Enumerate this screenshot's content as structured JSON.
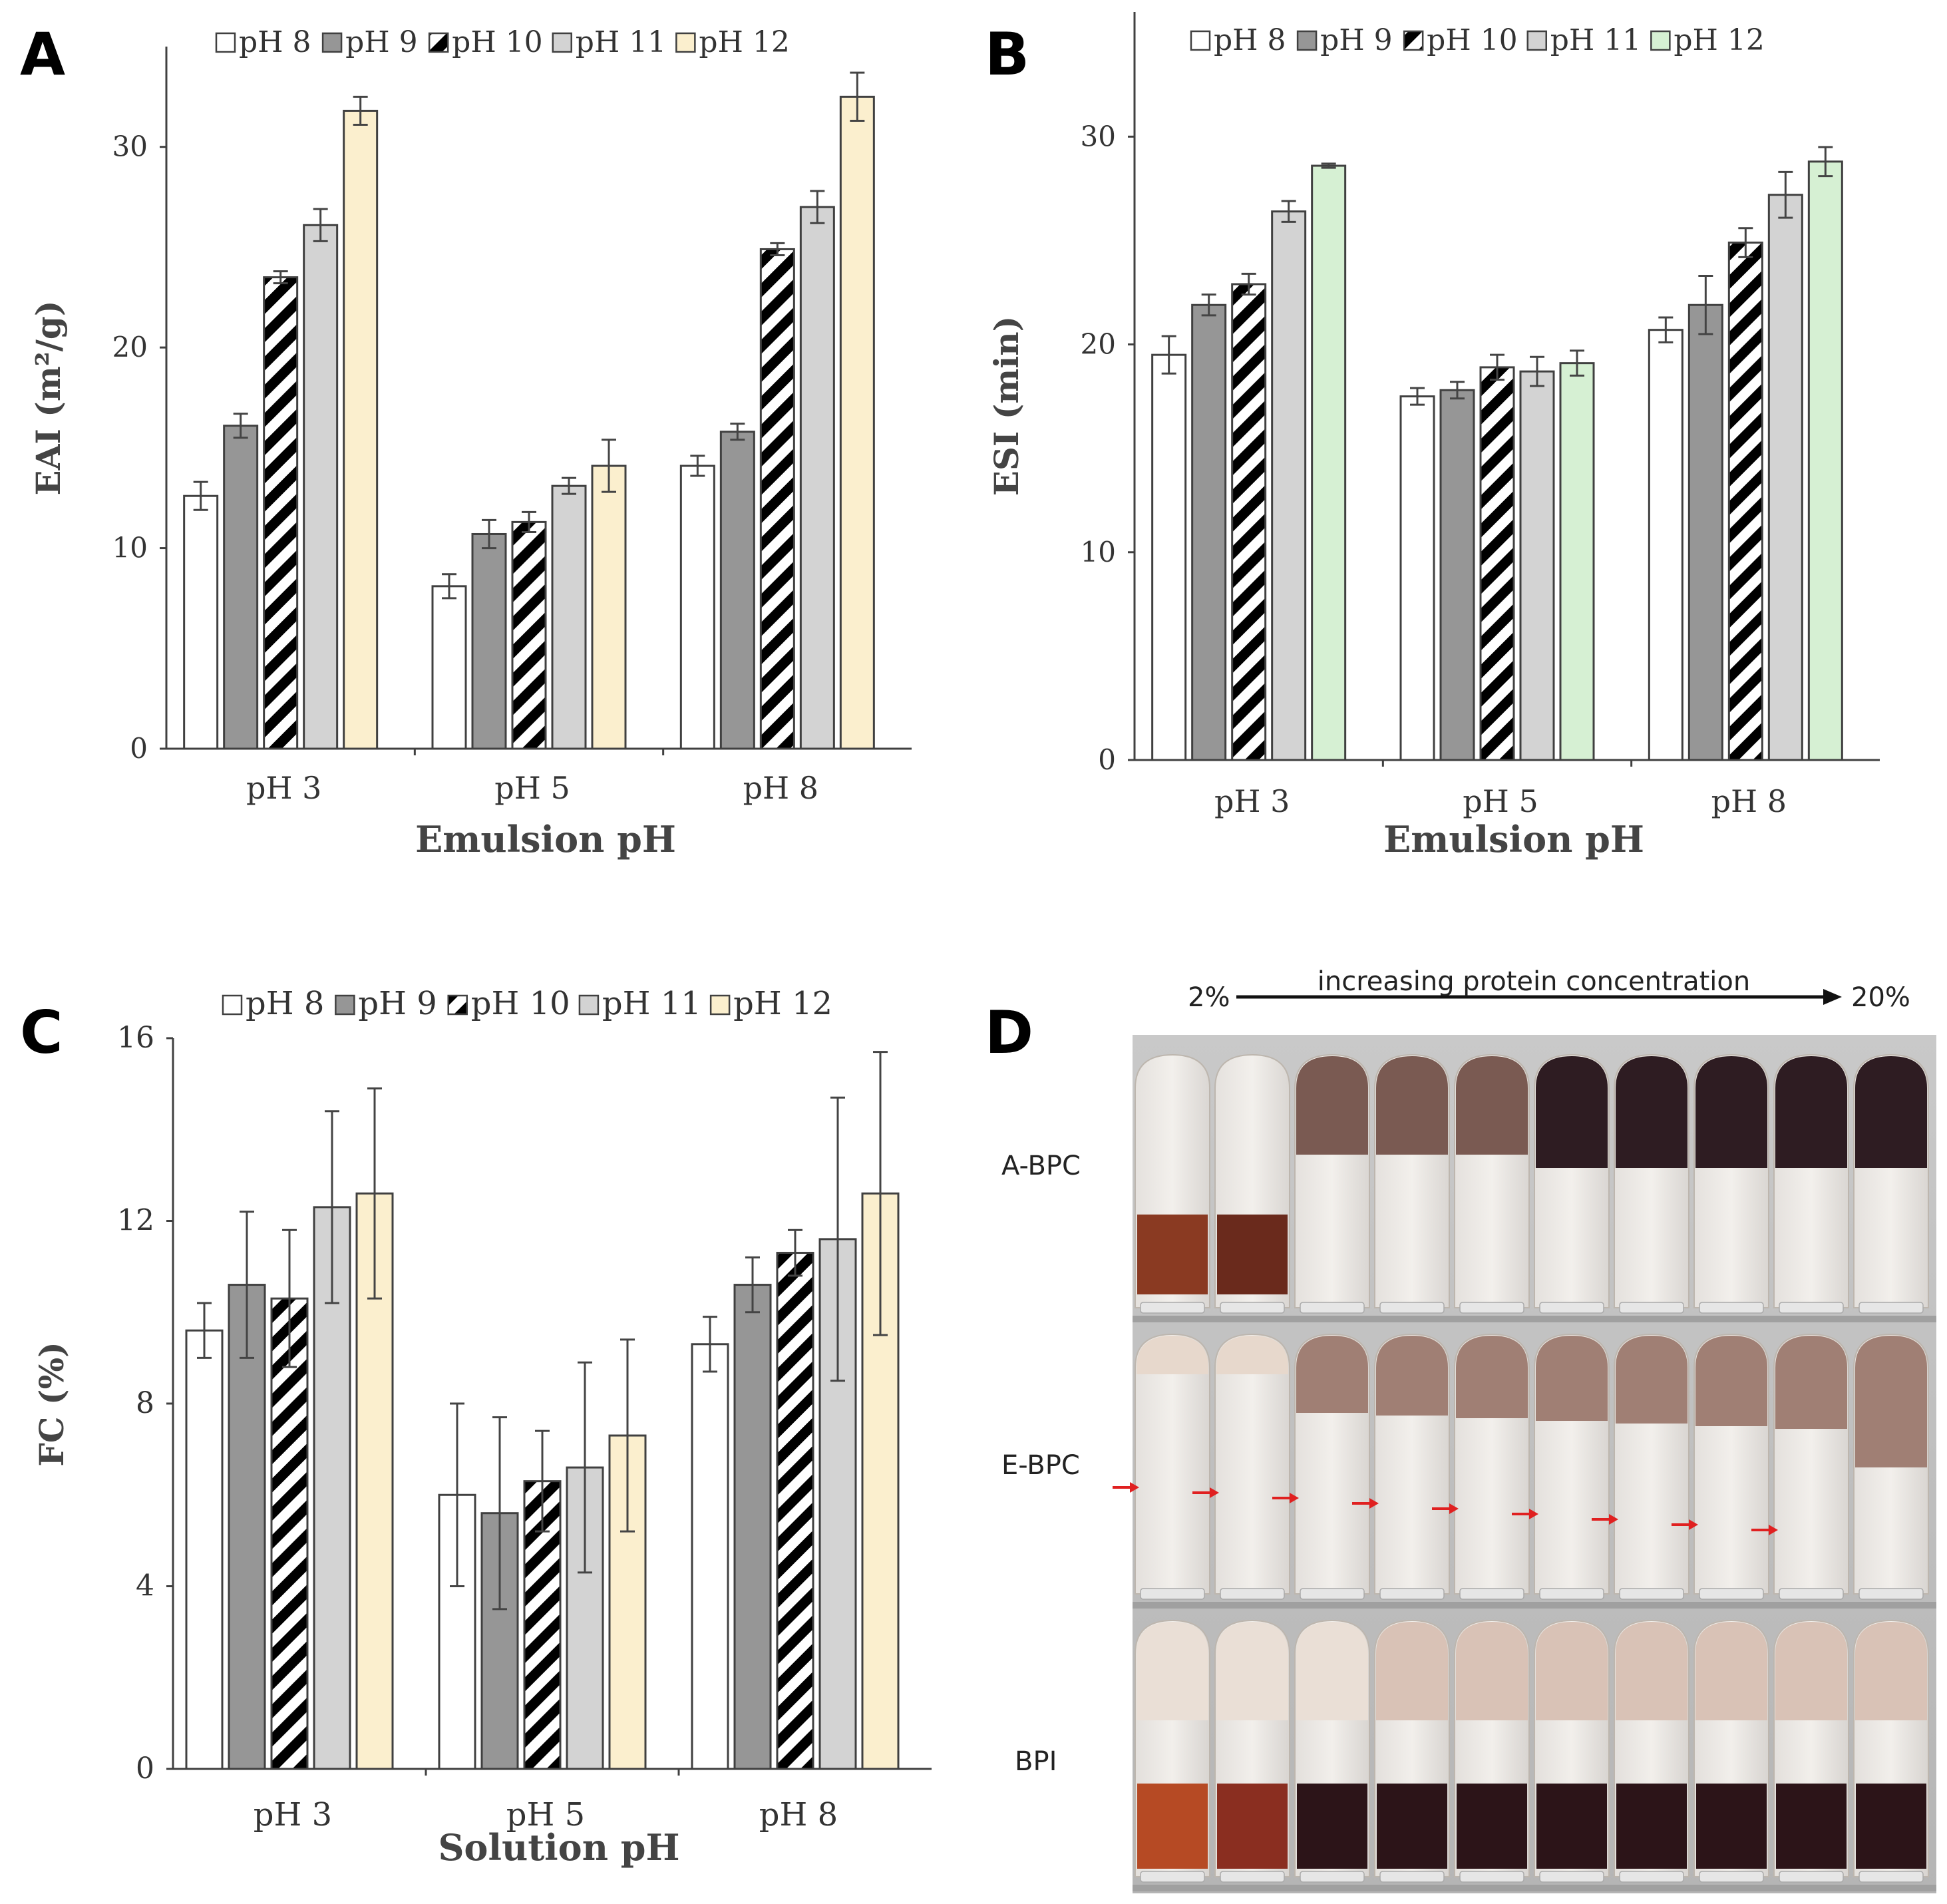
{
  "colors": {
    "pH 8": "#ffffff",
    "pH 9": "#969696",
    "pH 10": "hatch",
    "pH 11": "#d3d3d3",
    "pH 12 (A, C)": "#fbefce",
    "pH 12 (B)": "#d6f0d3",
    "axis": "#404040",
    "arrow": "#e02020"
  },
  "chart_data": [
    {
      "panel": "A",
      "type": "bar",
      "title": "",
      "xlabel": "Emulsion pH",
      "ylabel": "EAI (m²/g)",
      "ylim": [
        0,
        35
      ],
      "yticks": [
        0,
        10,
        20,
        30
      ],
      "categories": [
        "pH 3",
        "pH 5",
        "pH 8"
      ],
      "legend_position": "top",
      "series": [
        {
          "name": "pH 8",
          "values": [
            12.6,
            8.1,
            14.1
          ],
          "errors": [
            0.7,
            0.6,
            0.5
          ]
        },
        {
          "name": "pH 9",
          "values": [
            16.1,
            10.7,
            15.8
          ],
          "errors": [
            0.6,
            0.7,
            0.4
          ]
        },
        {
          "name": "pH 10",
          "values": [
            23.5,
            11.3,
            24.9
          ],
          "errors": [
            0.3,
            0.5,
            0.3
          ]
        },
        {
          "name": "pH 11",
          "values": [
            26.1,
            13.1,
            27.0
          ],
          "errors": [
            0.8,
            0.4,
            0.8
          ]
        },
        {
          "name": "pH 12",
          "values": [
            31.8,
            14.1,
            32.5
          ],
          "errors": [
            0.7,
            1.3,
            1.2
          ]
        }
      ]
    },
    {
      "panel": "B",
      "type": "bar",
      "title": "",
      "xlabel": "Emulsion pH",
      "ylabel": "ESI (min)",
      "ylim": [
        0,
        36
      ],
      "yticks": [
        0,
        10,
        20,
        30
      ],
      "categories": [
        "pH 3",
        "pH 5",
        "pH 8"
      ],
      "legend_position": "top",
      "series": [
        {
          "name": "pH 8",
          "values": [
            19.5,
            17.5,
            20.7
          ],
          "errors": [
            0.9,
            0.4,
            0.6
          ]
        },
        {
          "name": "pH 9",
          "values": [
            21.9,
            17.8,
            21.9
          ],
          "errors": [
            0.5,
            0.4,
            1.4
          ]
        },
        {
          "name": "pH 10",
          "values": [
            22.9,
            18.9,
            24.9
          ],
          "errors": [
            0.5,
            0.6,
            0.7
          ]
        },
        {
          "name": "pH 11",
          "values": [
            26.4,
            18.7,
            27.2
          ],
          "errors": [
            0.5,
            0.7,
            1.1
          ]
        },
        {
          "name": "pH 12",
          "values": [
            28.6,
            19.1,
            28.8
          ],
          "errors": [
            0.1,
            0.6,
            0.7
          ]
        }
      ]
    },
    {
      "panel": "C",
      "type": "bar",
      "title": "",
      "xlabel": "Solution pH",
      "ylabel": "FC (%)",
      "ylim": [
        0,
        16
      ],
      "yticks": [
        0,
        4,
        8,
        12,
        16
      ],
      "categories": [
        "pH 3",
        "pH 5",
        "pH 8"
      ],
      "legend_position": "top",
      "series": [
        {
          "name": "pH 8",
          "values": [
            9.6,
            6.0,
            9.3
          ],
          "errors": [
            0.6,
            2.0,
            0.6
          ]
        },
        {
          "name": "pH 9",
          "values": [
            10.6,
            5.6,
            10.6
          ],
          "errors": [
            1.6,
            2.1,
            0.6
          ]
        },
        {
          "name": "pH 10",
          "values": [
            10.3,
            6.3,
            11.3
          ],
          "errors": [
            1.5,
            1.1,
            0.5
          ]
        },
        {
          "name": "pH 11",
          "values": [
            12.3,
            6.6,
            11.6
          ],
          "errors": [
            2.1,
            2.3,
            3.1
          ]
        },
        {
          "name": "pH 12",
          "values": [
            12.6,
            7.3,
            12.6
          ],
          "errors": [
            2.3,
            2.1,
            3.1
          ]
        }
      ]
    }
  ],
  "panels": {
    "A": {
      "letter": "A"
    },
    "B": {
      "letter": "B"
    },
    "C": {
      "letter": "C"
    },
    "D": {
      "letter": "D",
      "header": "increasing protein concentration",
      "start_label": "2%",
      "end_label": "20%",
      "row_labels": [
        "A-BPC",
        "E-BPC",
        "BPI"
      ]
    }
  }
}
